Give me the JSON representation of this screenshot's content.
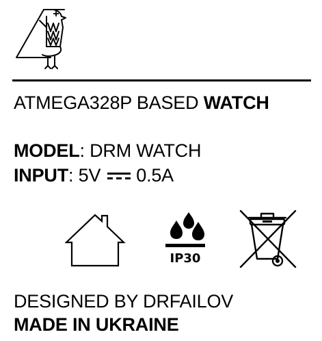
{
  "header": {
    "logo_icon": "bird-logo-icon"
  },
  "title": {
    "prefix": "ATMEGA328P BASED ",
    "emphasis": "WATCH"
  },
  "model": {
    "label": "MODEL",
    "sep": ": ",
    "value": "DRM WATCH"
  },
  "input": {
    "label": "INPUT",
    "sep": ": ",
    "voltage": "5V",
    "dc_icon": "dc-current-symbol-icon",
    "current": "0.5A"
  },
  "icons": {
    "indoor": "house-indoor-use-icon",
    "water": "water-drops-icon",
    "ip_rating": "IP30",
    "weee": "crossed-out-bin-icon"
  },
  "footer": {
    "designer": "DESIGNED BY DRFAILOV",
    "origin": "MADE IN UKRAINE"
  },
  "colors": {
    "ink": "#000000",
    "background": "#ffffff"
  }
}
